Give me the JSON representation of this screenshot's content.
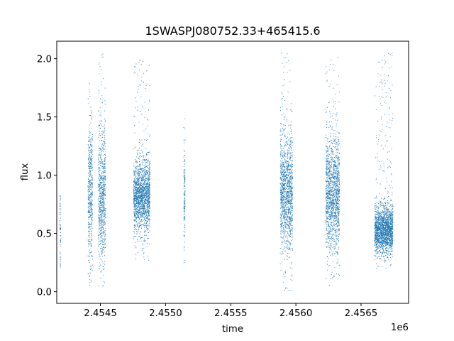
{
  "chart_data": {
    "type": "scatter",
    "title": "1SWASPJ080752.33+465415.6",
    "xlabel": "time",
    "ylabel": "flux",
    "x_offset_label": "1e6",
    "xlim": [
      2454165,
      2456865
    ],
    "ylim": [
      -0.1,
      2.15
    ],
    "x_ticks": [
      2454500,
      2455000,
      2455500,
      2456000,
      2456500
    ],
    "x_tick_labels": [
      "2.4545",
      "2.4550",
      "2.4555",
      "2.4560",
      "2.4565"
    ],
    "y_ticks": [
      0.0,
      0.5,
      1.0,
      1.5,
      2.0
    ],
    "y_tick_labels": [
      "0.0",
      "0.5",
      "1.0",
      "1.5",
      "2.0"
    ],
    "grid": false,
    "point_color": "#1f77b4",
    "clusters": [
      {
        "x_start": 2454190,
        "x_end": 2454195,
        "center": 0.6,
        "spread": 0.2,
        "min": 0.2,
        "max": 0.82
      },
      {
        "x_start": 2454405,
        "x_end": 2454440,
        "center": 0.85,
        "spread": 0.3,
        "min": 0.05,
        "max": 1.8
      },
      {
        "x_start": 2454485,
        "x_end": 2454540,
        "center": 0.82,
        "spread": 0.3,
        "min": 0.05,
        "max": 2.05
      },
      {
        "x_start": 2454755,
        "x_end": 2454880,
        "center": 0.83,
        "spread": 0.15,
        "min": 0.25,
        "max": 2.0
      },
      {
        "x_start": 2455140,
        "x_end": 2455150,
        "center": 0.85,
        "spread": 0.2,
        "min": 0.2,
        "max": 1.5
      },
      {
        "x_start": 2455880,
        "x_end": 2455975,
        "center": 0.85,
        "spread": 0.25,
        "min": 0.0,
        "max": 2.05
      },
      {
        "x_start": 2456230,
        "x_end": 2456335,
        "center": 0.85,
        "spread": 0.25,
        "min": 0.05,
        "max": 2.05
      },
      {
        "x_start": 2456605,
        "x_end": 2456745,
        "center": 0.53,
        "spread": 0.1,
        "min": 0.2,
        "max": 2.05
      }
    ]
  }
}
